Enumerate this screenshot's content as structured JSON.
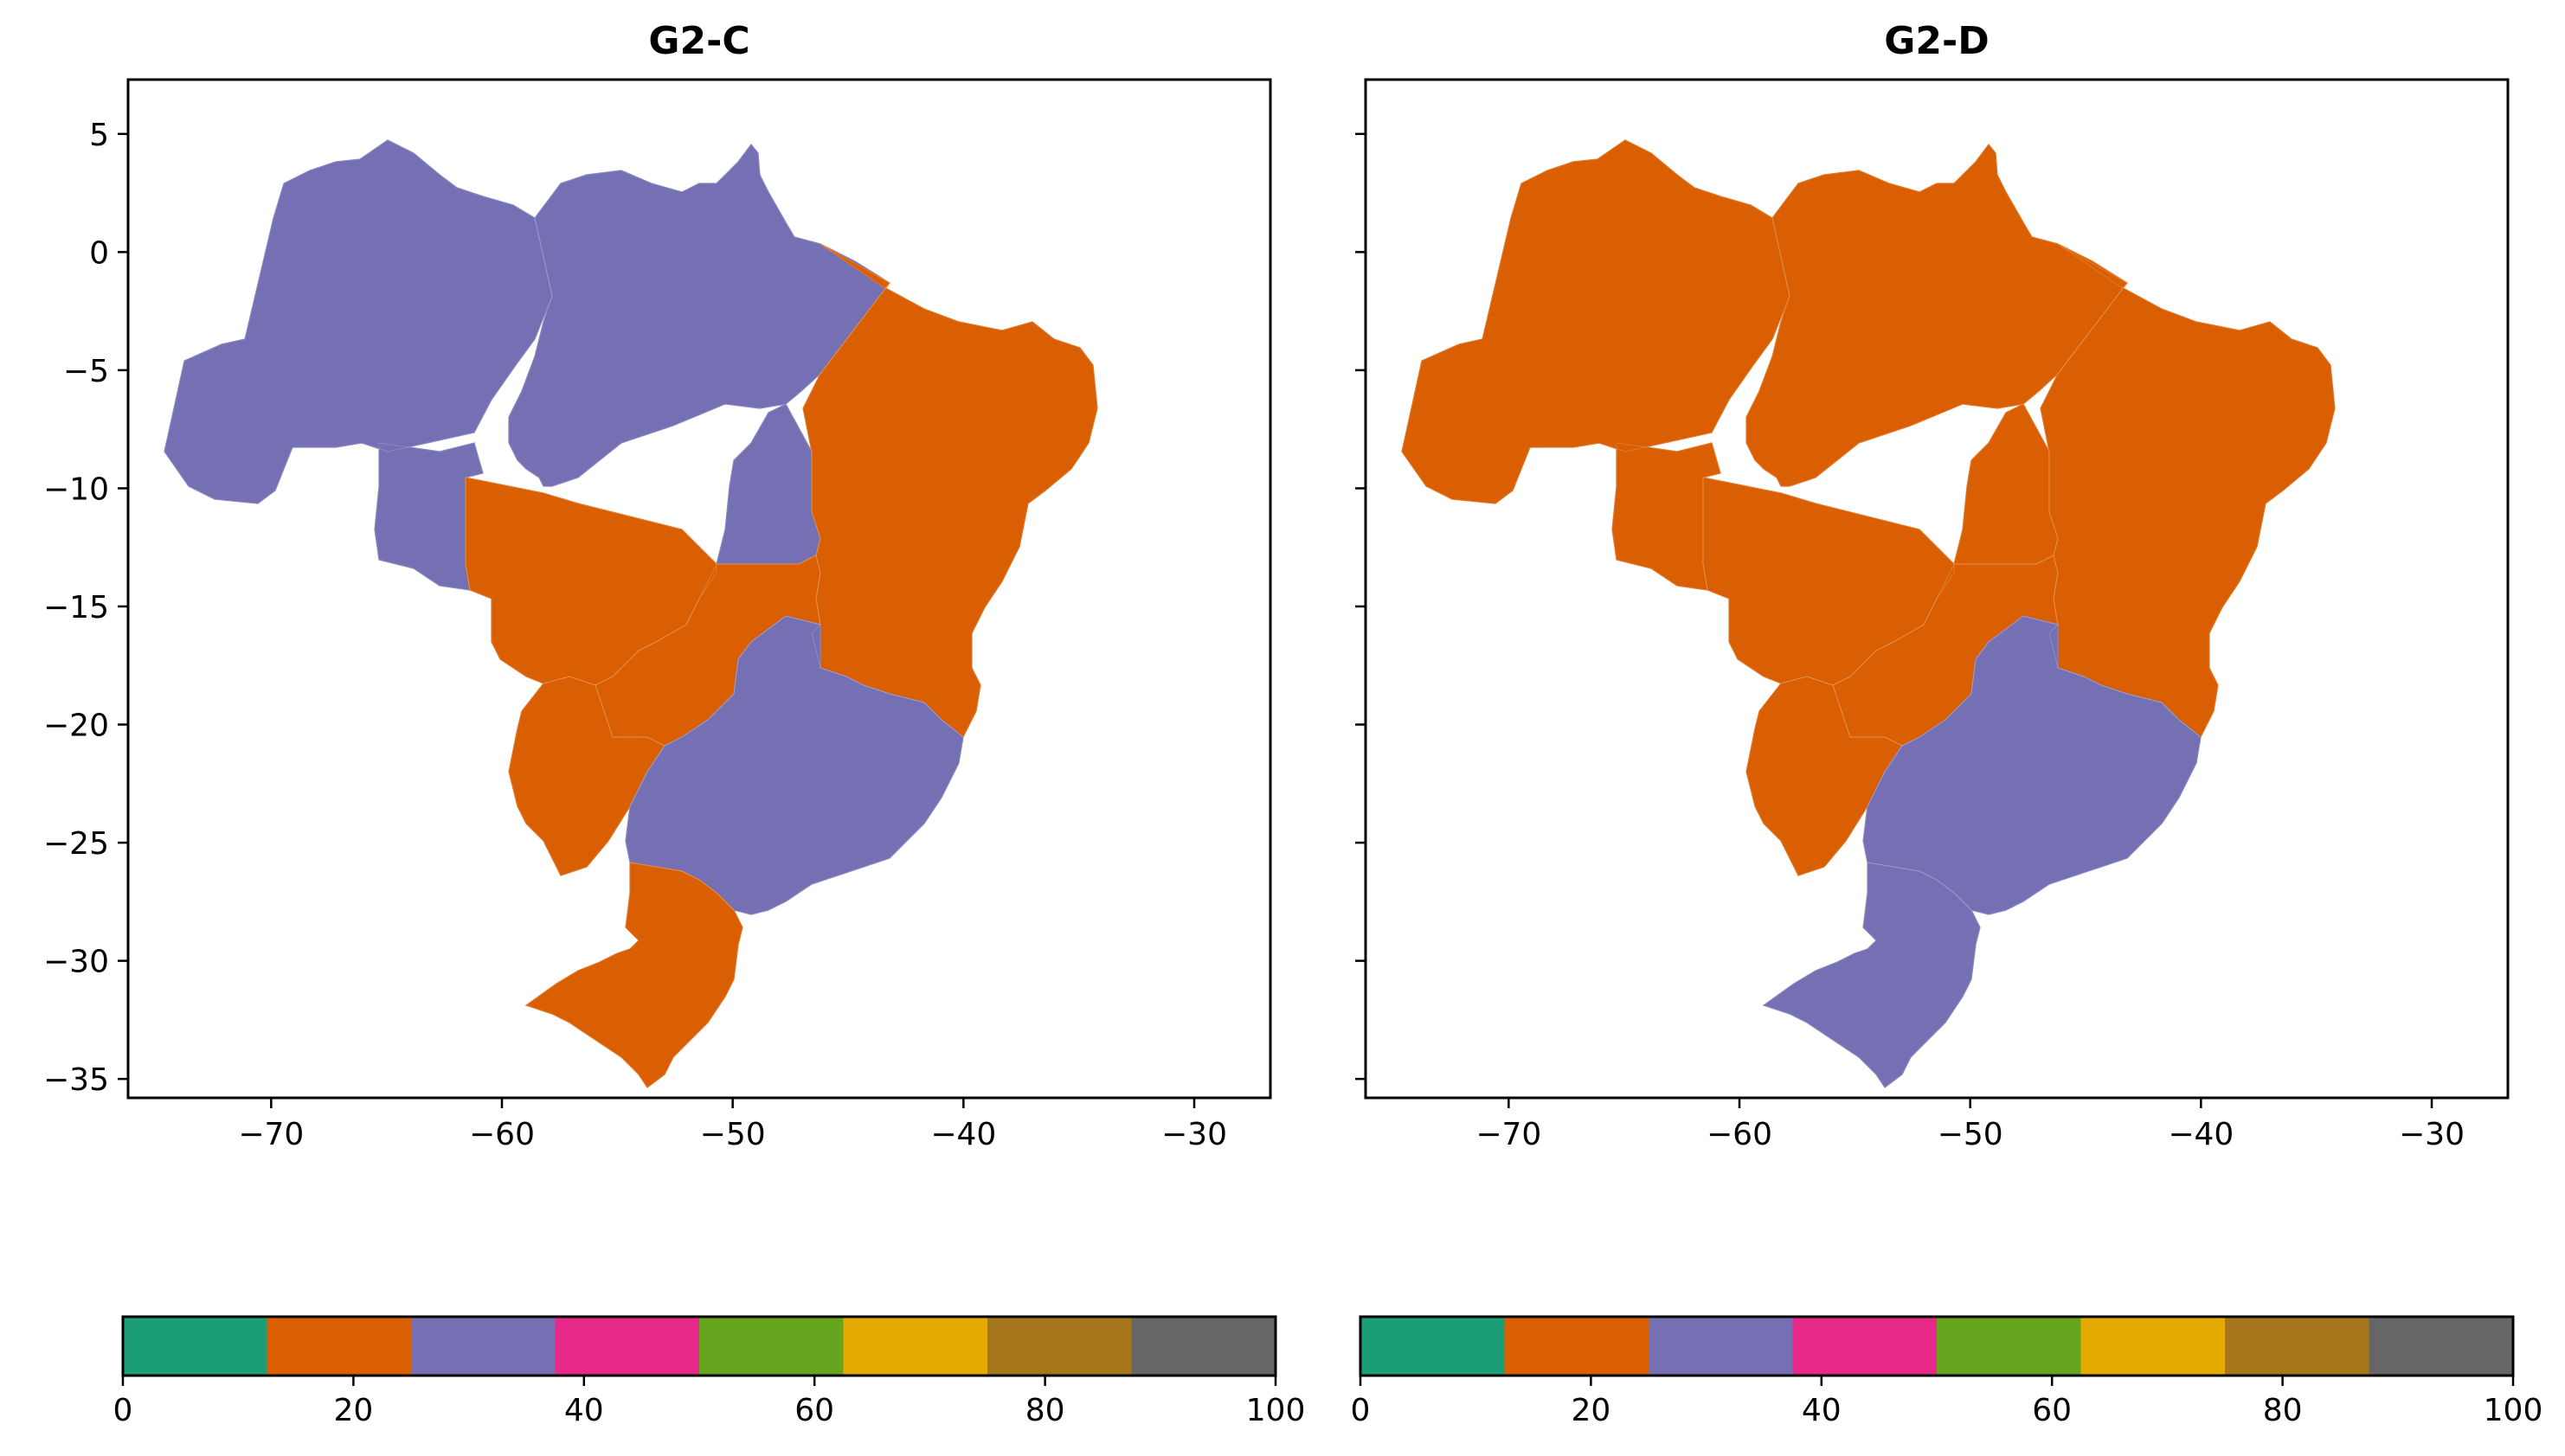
{
  "panels": [
    {
      "title": "G2-C",
      "region_colors": {
        "north_west": "#7570b3",
        "north_east": "#7570b3",
        "tocantins": "#7570b3",
        "rondonia": "#7570b3",
        "northeast": "#d95f02",
        "mato_grosso": "#d95f02",
        "goias": "#d95f02",
        "mato_grosso_sul": "#d95f02",
        "southeast": "#7570b3",
        "south": "#d95f02"
      }
    },
    {
      "title": "G2-D",
      "region_colors": {
        "north_west": "#d95f02",
        "north_east": "#d95f02",
        "tocantins": "#d95f02",
        "rondonia": "#d95f02",
        "northeast": "#d95f02",
        "mato_grosso": "#d95f02",
        "goias": "#d95f02",
        "mato_grosso_sul": "#d95f02",
        "southeast": "#7570b3",
        "south": "#7570b3"
      }
    }
  ],
  "axes": {
    "x_ticks": [
      -70,
      -60,
      -50,
      -40,
      -30
    ],
    "x_tick_labels": [
      "−70",
      "−60",
      "−50",
      "−40",
      "−30"
    ],
    "y_ticks": [
      5,
      0,
      -5,
      -10,
      -15,
      -20,
      -25,
      -30,
      -35
    ],
    "y_tick_labels": [
      "5",
      "0",
      "−5",
      "−10",
      "−15",
      "−20",
      "−25",
      "−30",
      "−35"
    ],
    "xlim": [
      -76.2,
      -26.7
    ],
    "ylim": [
      -35.8,
      7.3
    ]
  },
  "colorbar": {
    "range": [
      0,
      100
    ],
    "colors": [
      "#1b9e77",
      "#d95f02",
      "#7570b3",
      "#e7298a",
      "#66a61e",
      "#e6ab02",
      "#a6761d",
      "#666666"
    ],
    "ticks": [
      0,
      20,
      40,
      60,
      80,
      100
    ],
    "tick_labels": [
      "0",
      "20",
      "40",
      "60",
      "80",
      "100"
    ]
  }
}
